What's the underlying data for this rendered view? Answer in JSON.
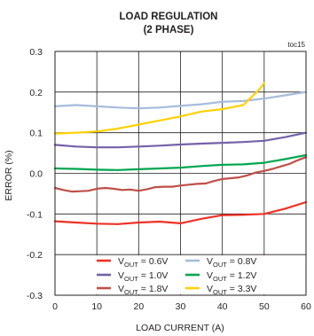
{
  "chart_data": {
    "type": "line",
    "title": "LOAD REGULATION",
    "subtitle": "(2 PHASE)",
    "note": "toc15",
    "xlabel": "LOAD CURRENT (A)",
    "ylabel": "ERROR (%)",
    "xlim": [
      0,
      60
    ],
    "ylim": [
      -0.3,
      0.3
    ],
    "x_ticks": [
      "0",
      "10",
      "20",
      "30",
      "40",
      "50",
      "60"
    ],
    "y_ticks": [
      "0.3",
      "0.2",
      "0.1",
      "0.0",
      "-0.1",
      "-0.2",
      "-0.3"
    ],
    "grid": true,
    "legend_placement": "bottom-center",
    "series": [
      {
        "name_prefix": "V",
        "name_sub": "OUT",
        "name_suffix": " = 0.6V",
        "color": "#ee3124",
        "x": [
          0,
          5,
          10,
          15,
          20,
          25,
          30,
          35,
          40,
          45,
          50,
          55,
          60
        ],
        "y": [
          -0.118,
          -0.121,
          -0.124,
          -0.125,
          -0.121,
          -0.119,
          -0.123,
          -0.112,
          -0.103,
          -0.102,
          -0.1,
          -0.087,
          -0.071
        ]
      },
      {
        "name_prefix": "V",
        "name_sub": "OUT",
        "name_suffix": " = 0.8V",
        "color": "#a6bcda",
        "x": [
          0,
          5,
          10,
          15,
          20,
          25,
          30,
          35,
          40,
          45,
          50,
          55,
          60
        ],
        "y": [
          0.165,
          0.168,
          0.165,
          0.162,
          0.16,
          0.162,
          0.166,
          0.17,
          0.176,
          0.178,
          0.184,
          0.192,
          0.2
        ]
      },
      {
        "name_prefix": "V",
        "name_sub": "OUT",
        "name_suffix": " = 1.0V",
        "color": "#7461a8",
        "x": [
          0,
          5,
          10,
          15,
          20,
          25,
          30,
          35,
          40,
          45,
          50,
          55,
          60
        ],
        "y": [
          0.07,
          0.066,
          0.064,
          0.064,
          0.066,
          0.068,
          0.071,
          0.073,
          0.075,
          0.077,
          0.08,
          0.089,
          0.1
        ]
      },
      {
        "name_prefix": "V",
        "name_sub": "OUT",
        "name_suffix": " = 1.2V",
        "color": "#00a651",
        "x": [
          0,
          5,
          10,
          15,
          20,
          25,
          30,
          35,
          40,
          45,
          50,
          55,
          60
        ],
        "y": [
          0.012,
          0.011,
          0.009,
          0.008,
          0.01,
          0.012,
          0.014,
          0.018,
          0.021,
          0.022,
          0.026,
          0.035,
          0.045
        ]
      },
      {
        "name_prefix": "V",
        "name_sub": "OUT",
        "name_suffix": " = 1.8V",
        "color": "#be4f47",
        "x": [
          0,
          2,
          4,
          6,
          8,
          10,
          12,
          14,
          16,
          18,
          20,
          22,
          24,
          26,
          28,
          30,
          32,
          34,
          36,
          38,
          40,
          42,
          44,
          46,
          48,
          50,
          52,
          54,
          56,
          58,
          60
        ],
        "y": [
          -0.036,
          -0.041,
          -0.045,
          -0.044,
          -0.043,
          -0.038,
          -0.036,
          -0.038,
          -0.041,
          -0.04,
          -0.043,
          -0.039,
          -0.034,
          -0.033,
          -0.033,
          -0.03,
          -0.028,
          -0.026,
          -0.025,
          -0.019,
          -0.014,
          -0.012,
          -0.01,
          -0.005,
          0.002,
          0.006,
          0.011,
          0.017,
          0.023,
          0.032,
          0.04
        ]
      },
      {
        "name_prefix": "V",
        "name_sub": "OUT",
        "name_suffix": " = 3.3V",
        "color": "#ffd200",
        "x": [
          0,
          5,
          10,
          15,
          20,
          25,
          30,
          35,
          40,
          45,
          47,
          49,
          50
        ],
        "y": [
          0.098,
          0.1,
          0.103,
          0.11,
          0.12,
          0.13,
          0.14,
          0.152,
          0.158,
          0.168,
          0.188,
          0.208,
          0.222
        ]
      }
    ],
    "plot_order": [
      1,
      2,
      3,
      4,
      5,
      0
    ],
    "legend_order": [
      0,
      1,
      2,
      3,
      4,
      5
    ]
  }
}
